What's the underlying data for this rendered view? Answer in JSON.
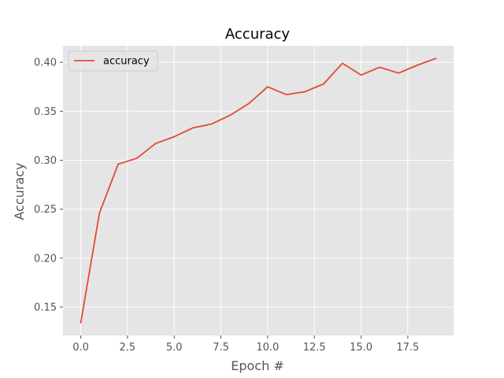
{
  "chart_data": {
    "type": "line",
    "title": "Accuracy",
    "xlabel": "Epoch #",
    "ylabel": "Accuracy",
    "x": [
      0,
      1,
      2,
      3,
      4,
      5,
      6,
      7,
      8,
      9,
      10,
      11,
      12,
      13,
      14,
      15,
      16,
      17,
      18,
      19
    ],
    "series": [
      {
        "name": "accuracy",
        "color": "#E24A33",
        "values": [
          0.134,
          0.246,
          0.296,
          0.302,
          0.317,
          0.324,
          0.333,
          0.337,
          0.346,
          0.358,
          0.375,
          0.367,
          0.37,
          0.378,
          0.399,
          0.387,
          0.395,
          0.389,
          0.397,
          0.404
        ]
      }
    ],
    "xlim": [
      -0.95,
      19.95
    ],
    "ylim": [
      0.121,
      0.417
    ],
    "xticks": [
      0.0,
      2.5,
      5.0,
      7.5,
      10.0,
      12.5,
      15.0,
      17.5
    ],
    "xtick_labels": [
      "0.0",
      "2.5",
      "5.0",
      "7.5",
      "10.0",
      "12.5",
      "15.0",
      "17.5"
    ],
    "yticks": [
      0.15,
      0.2,
      0.25,
      0.3,
      0.35,
      0.4
    ],
    "ytick_labels": [
      "0.15",
      "0.20",
      "0.25",
      "0.30",
      "0.35",
      "0.40"
    ],
    "grid": true,
    "legend_position": "top-left",
    "style": {
      "plot_background": "#E5E5E5",
      "grid_color": "#FFFFFF",
      "tick_color": "#555555"
    }
  }
}
